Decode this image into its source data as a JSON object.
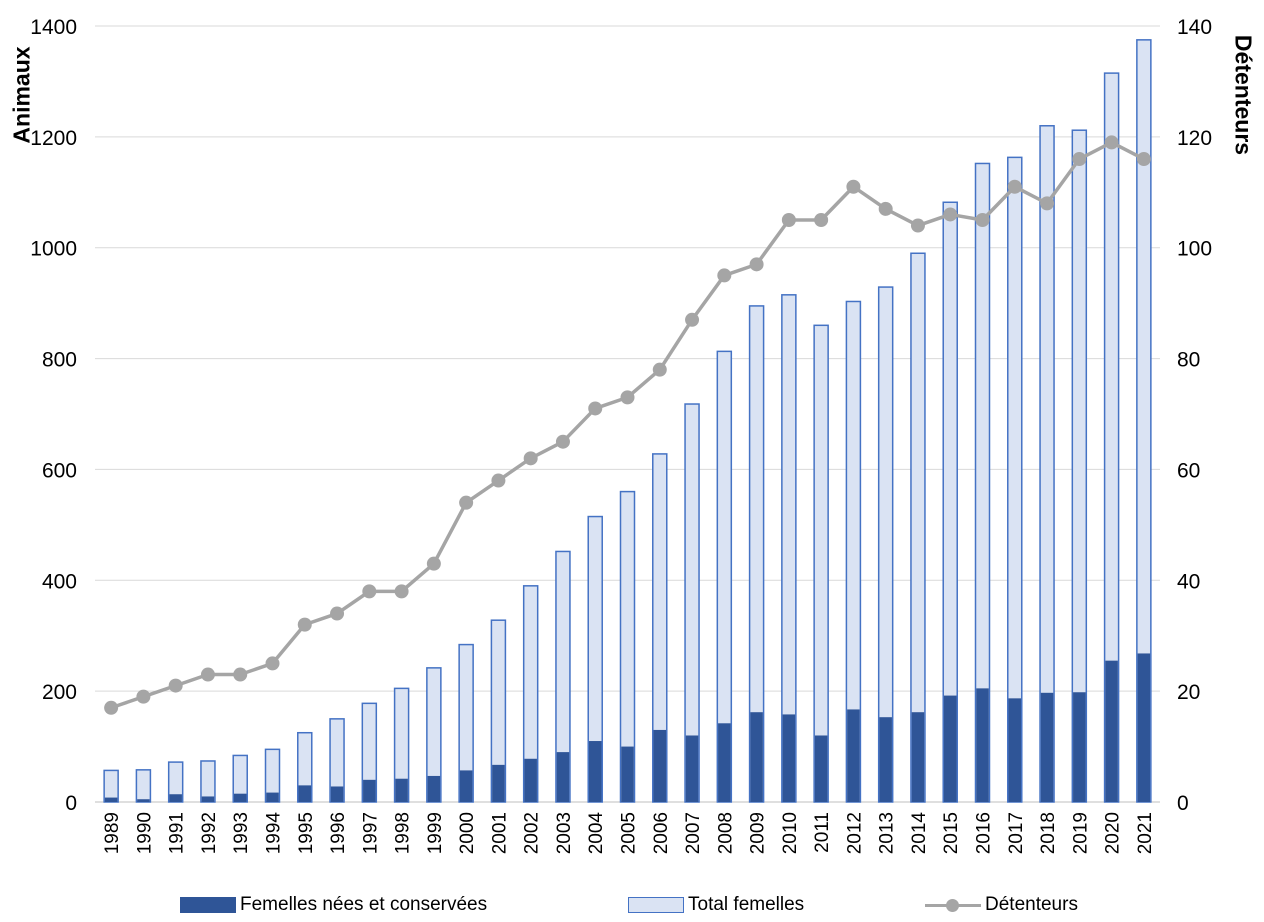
{
  "chart_data": {
    "type": "bar",
    "categories": [
      "1989",
      "1990",
      "1991",
      "1992",
      "1993",
      "1994",
      "1995",
      "1996",
      "1997",
      "1998",
      "1999",
      "2000",
      "2001",
      "2002",
      "2003",
      "2004",
      "2005",
      "2006",
      "2007",
      "2008",
      "2009",
      "2010",
      "2011",
      "2012",
      "2013",
      "2014",
      "2015",
      "2016",
      "2017",
      "2018",
      "2019",
      "2020",
      "2021"
    ],
    "series": [
      {
        "name": "Femelles nées et conservées",
        "kind": "bar",
        "axis": "left",
        "color": "#2f5597",
        "values": [
          8,
          5,
          14,
          10,
          15,
          17,
          30,
          28,
          40,
          42,
          47,
          57,
          67,
          78,
          90,
          110,
          100,
          130,
          120,
          142,
          162,
          158,
          120,
          167,
          153,
          162,
          192,
          205,
          187,
          197,
          198,
          255,
          268
        ]
      },
      {
        "name": "Total femelles",
        "kind": "bar",
        "axis": "left",
        "color": "#dae3f3",
        "border": "#4472c4",
        "values": [
          57,
          58,
          72,
          74,
          84,
          95,
          125,
          150,
          178,
          205,
          242,
          284,
          328,
          390,
          452,
          515,
          560,
          628,
          718,
          813,
          895,
          915,
          860,
          903,
          929,
          990,
          1082,
          1152,
          1163,
          1220,
          1212,
          1315,
          1375
        ]
      },
      {
        "name": "Détenteurs",
        "kind": "line",
        "axis": "right",
        "color": "#a5a5a5",
        "values": [
          17,
          19,
          21,
          23,
          23,
          25,
          32,
          34,
          38,
          38,
          43,
          54,
          58,
          62,
          65,
          71,
          73,
          78,
          87,
          95,
          97,
          105,
          105,
          111,
          107,
          104,
          106,
          105,
          111,
          108,
          116,
          119,
          116
        ]
      }
    ],
    "y_left": {
      "label": "Animaux",
      "range": [
        0,
        1400
      ],
      "ticks": [
        "0",
        "200",
        "400",
        "600",
        "800",
        "1000",
        "1200",
        "1400"
      ]
    },
    "y_right": {
      "label": "Détenteurs",
      "range": [
        0,
        140
      ],
      "ticks": [
        "0",
        "20",
        "40",
        "60",
        "80",
        "100",
        "120",
        "140"
      ]
    },
    "grid": true,
    "legend_position": "bottom"
  }
}
